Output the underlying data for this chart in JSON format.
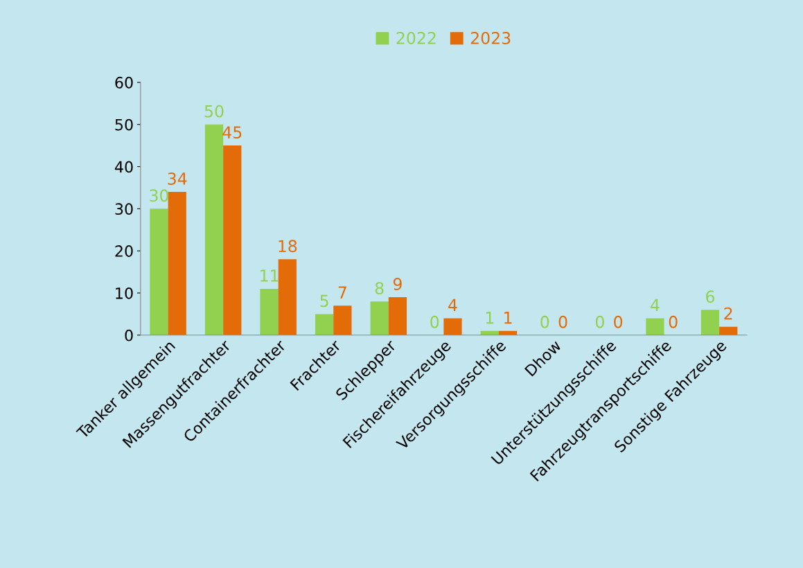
{
  "chart_data": {
    "type": "bar",
    "categories": [
      "Tanker allgemein",
      "Massengutfrachter",
      "Containerfrachter",
      "Frachter",
      "Schlepper",
      "Fischereifahrzeuge",
      "Versorgungsschiffe",
      "Dhow",
      "Unterstützungsschiffe",
      "Fahrzeugtransportschiffe",
      "Sonstige Fahrzeuge"
    ],
    "series": [
      {
        "name": "2022",
        "color": "#92d050",
        "values": [
          30,
          50,
          11,
          5,
          8,
          0,
          1,
          0,
          0,
          4,
          6
        ]
      },
      {
        "name": "2023",
        "color": "#e36c09",
        "values": [
          34,
          45,
          18,
          7,
          9,
          4,
          1,
          0,
          0,
          0,
          2
        ]
      }
    ],
    "ylim": [
      0,
      60
    ],
    "yticks": [
      0,
      10,
      20,
      30,
      40,
      50,
      60
    ],
    "data_labels": true,
    "legend": "top",
    "grid": false
  }
}
